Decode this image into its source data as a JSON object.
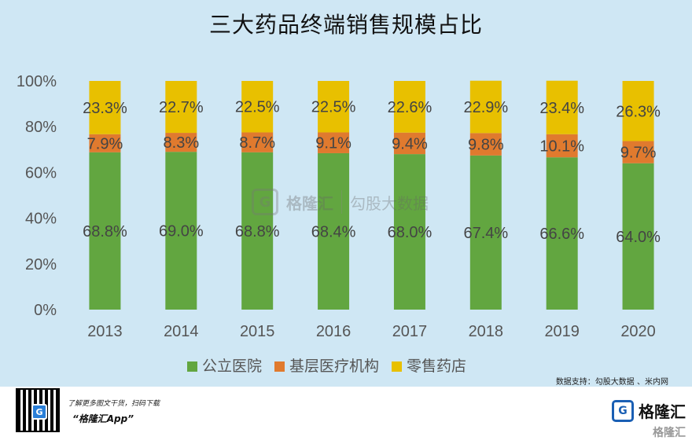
{
  "chart_data": {
    "type": "bar",
    "stacked": true,
    "title": "三大药品终端销售规模占比",
    "categories": [
      "2013",
      "2014",
      "2015",
      "2016",
      "2017",
      "2018",
      "2019",
      "2020"
    ],
    "series": [
      {
        "name": "公立医院",
        "color": "#62a640",
        "values": [
          68.8,
          69.0,
          68.8,
          68.4,
          68.0,
          67.4,
          66.6,
          64.0
        ],
        "labels": [
          "68.8%",
          "69.0%",
          "68.8%",
          "68.4%",
          "68.0%",
          "67.4%",
          "66.6%",
          "64.0%"
        ]
      },
      {
        "name": "基层医疗机构",
        "color": "#e07a2e",
        "values": [
          7.9,
          8.3,
          8.7,
          9.1,
          9.4,
          9.8,
          10.1,
          9.7
        ],
        "labels": [
          "7.9%",
          "8.3%",
          "8.7%",
          "9.1%",
          "9.4%",
          "9.8%",
          "10.1%",
          "9.7%"
        ]
      },
      {
        "name": "零售药店",
        "color": "#e8c000",
        "values": [
          23.3,
          22.7,
          22.5,
          22.5,
          22.6,
          22.9,
          23.4,
          26.3
        ],
        "labels": [
          "23.3%",
          "22.7%",
          "22.5%",
          "22.5%",
          "22.6%",
          "22.9%",
          "23.4%",
          "26.3%"
        ]
      }
    ],
    "yticks": [
      "0%",
      "20%",
      "40%",
      "60%",
      "80%",
      "100%"
    ],
    "ylim": [
      0,
      100
    ],
    "grid": false,
    "legend": "bottom"
  },
  "source_note": "数据支持：勾股大数据 、米内网",
  "watermark": {
    "brand": "格隆汇",
    "brand2": "勾股大数据",
    "logo_letter": "G"
  },
  "footer": {
    "promo_text": "了解更多图文干货，扫码下载",
    "app_name": "“格隆汇App”",
    "brand": "格隆汇",
    "brand_logo_letter": "G",
    "corner_brand": "格隆汇"
  },
  "colors": {
    "panel_bg": "#cfe7f4",
    "axis_text": "#555555"
  }
}
